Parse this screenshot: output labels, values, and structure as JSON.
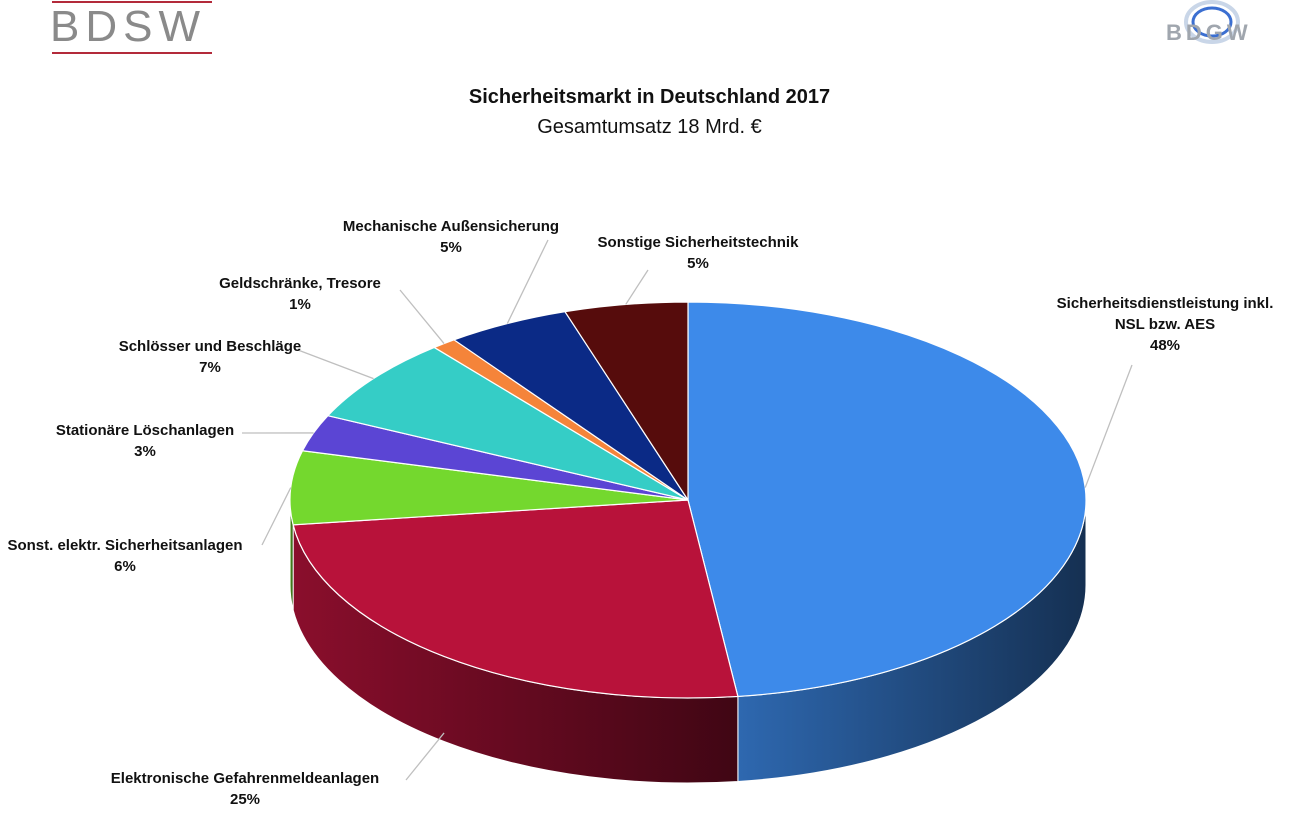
{
  "logos": {
    "left": "BDSW",
    "right": "BDGW"
  },
  "chart_data": {
    "type": "pie",
    "title": "Sicherheitsmarkt in Deutschland 2017",
    "subtitle": "Gesamtumsatz 18 Mrd. €",
    "slices": [
      {
        "label": "Sicherheitsdienstleistung inkl. NSL bzw. AES",
        "value": 48,
        "value_label": "48%",
        "color": "#3d8aea"
      },
      {
        "label": "Elektronische Gefahrenmeldeanlagen",
        "value": 25,
        "value_label": "25%",
        "color": "#b8123a"
      },
      {
        "label": "Sonst. elektr. Sicherheitsanlagen",
        "value": 6,
        "value_label": "6%",
        "color": "#74d82e"
      },
      {
        "label": "Stationäre Löschanlagen",
        "value": 3,
        "value_label": "3%",
        "color": "#5b45d4"
      },
      {
        "label": "Schlösser und Beschläge",
        "value": 7,
        "value_label": "7%",
        "color": "#35cdc6"
      },
      {
        "label": "Geldschränke, Tresore",
        "value": 1,
        "value_label": "1%",
        "color": "#f5843a"
      },
      {
        "label": "Mechanische Außensicherung",
        "value": 5,
        "value_label": "5%",
        "color": "#0b2a86"
      },
      {
        "label": "Sonstige Sicherheitstechnik",
        "value": 5,
        "value_label": "5%",
        "color": "#560c0c"
      }
    ]
  }
}
